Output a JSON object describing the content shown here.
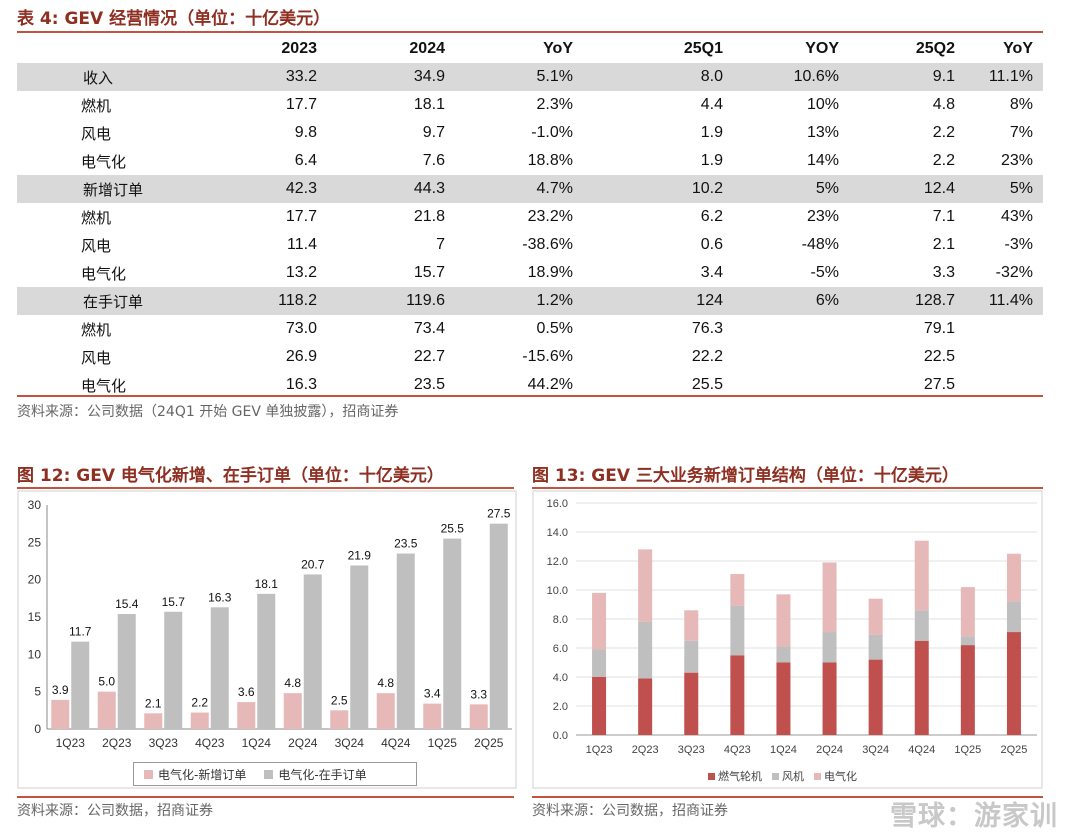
{
  "table": {
    "title": "表 4:  GEV 经营情况（单位：十亿美元）",
    "headers": [
      "",
      "2023",
      "2024",
      "YoY",
      "25Q1",
      "YOY",
      "25Q2",
      "YoY"
    ],
    "rows": [
      {
        "label": "收入",
        "highlight": true,
        "cells": [
          "33.2",
          "34.9",
          "5.1%",
          "8.0",
          "10.6%",
          "9.1",
          "11.1%"
        ]
      },
      {
        "label": "燃机",
        "highlight": false,
        "cells": [
          "17.7",
          "18.1",
          "2.3%",
          "4.4",
          "10%",
          "4.8",
          "8%"
        ]
      },
      {
        "label": "风电",
        "highlight": false,
        "cells": [
          "9.8",
          "9.7",
          "-1.0%",
          "1.9",
          "13%",
          "2.2",
          "7%"
        ]
      },
      {
        "label": "电气化",
        "highlight": false,
        "cells": [
          "6.4",
          "7.6",
          "18.8%",
          "1.9",
          "14%",
          "2.2",
          "23%"
        ]
      },
      {
        "label": "新增订单",
        "highlight": true,
        "cells": [
          "42.3",
          "44.3",
          "4.7%",
          "10.2",
          "5%",
          "12.4",
          "5%"
        ]
      },
      {
        "label": "燃机",
        "highlight": false,
        "cells": [
          "17.7",
          "21.8",
          "23.2%",
          "6.2",
          "23%",
          "7.1",
          "43%"
        ]
      },
      {
        "label": "风电",
        "highlight": false,
        "cells": [
          "11.4",
          "7",
          "-38.6%",
          "0.6",
          "-48%",
          "2.1",
          "-3%"
        ]
      },
      {
        "label": "电气化",
        "highlight": false,
        "cells": [
          "13.2",
          "15.7",
          "18.9%",
          "3.4",
          "-5%",
          "3.3",
          "-32%"
        ]
      },
      {
        "label": "在手订单",
        "highlight": true,
        "cells": [
          "118.2",
          "119.6",
          "1.2%",
          "124",
          "6%",
          "128.7",
          "11.4%"
        ]
      },
      {
        "label": "燃机",
        "highlight": false,
        "cells": [
          "73.0",
          "73.4",
          "0.5%",
          "76.3",
          "",
          "79.1",
          ""
        ]
      },
      {
        "label": "风电",
        "highlight": false,
        "cells": [
          "26.9",
          "22.7",
          "-15.6%",
          "22.2",
          "",
          "22.5",
          ""
        ]
      },
      {
        "label": "电气化",
        "highlight": false,
        "cells": [
          "16.3",
          "23.5",
          "44.2%",
          "25.5",
          "",
          "27.5",
          ""
        ]
      }
    ],
    "source": "资料来源：公司数据（24Q1 开始 GEV 单独披露），招商证券"
  },
  "fig12": {
    "title": "图 12:  GEV 电气化新增、在手订单（单位：十亿美元）",
    "source": "资料来源：公司数据，招商证券"
  },
  "fig13": {
    "title": "图 13:  GEV 三大业务新增订单结构（单位：十亿美元）",
    "source": "资料来源：公司数据，招商证券"
  },
  "watermark": "雪球：游家训",
  "colors": {
    "title": "#8e2f22",
    "rule": "#c2543f",
    "pink": "#e6b8b7",
    "gray": "#bfbfbf",
    "red": "#c0504d",
    "lightpink": "#e6b8b7"
  },
  "chart_data": [
    {
      "type": "bar",
      "title": "GEV 电气化新增、在手订单（单位：十亿美元）",
      "categories": [
        "1Q23",
        "2Q23",
        "3Q23",
        "4Q23",
        "1Q24",
        "2Q24",
        "3Q24",
        "4Q24",
        "1Q25",
        "2Q25"
      ],
      "series": [
        {
          "name": "电气化-新增订单",
          "color": "#e6b8b7",
          "values": [
            3.9,
            5.0,
            2.1,
            2.2,
            3.6,
            4.8,
            2.5,
            4.8,
            3.4,
            3.3
          ]
        },
        {
          "name": "电气化-在手订单",
          "color": "#bfbfbf",
          "values": [
            11.7,
            15.4,
            15.7,
            16.3,
            18.1,
            20.7,
            21.9,
            23.5,
            25.5,
            27.5
          ]
        }
      ],
      "yticks": [
        0,
        5,
        10,
        15,
        20,
        25,
        30
      ],
      "ylim": [
        0,
        30
      ],
      "legend_position": "bottom"
    },
    {
      "type": "stacked-bar",
      "title": "GEV 三大业务新增订单结构（单位：十亿美元）",
      "categories": [
        "1Q23",
        "2Q23",
        "3Q23",
        "4Q23",
        "1Q24",
        "2Q24",
        "3Q24",
        "4Q24",
        "1Q25",
        "2Q25"
      ],
      "series": [
        {
          "name": "燃气轮机",
          "color": "#c0504d",
          "values": [
            4.0,
            3.9,
            4.3,
            5.5,
            5.0,
            5.0,
            5.2,
            6.5,
            6.2,
            7.1
          ]
        },
        {
          "name": "风机",
          "color": "#bfbfbf",
          "values": [
            1.9,
            3.9,
            2.2,
            3.4,
            1.1,
            2.1,
            1.7,
            2.1,
            0.6,
            2.1
          ]
        },
        {
          "name": "电气化",
          "color": "#e6b8b7",
          "values": [
            3.9,
            5.0,
            2.1,
            2.2,
            3.6,
            4.8,
            2.5,
            4.8,
            3.4,
            3.3
          ]
        }
      ],
      "yticks": [
        "0.0",
        "2.0",
        "4.0",
        "6.0",
        "8.0",
        "10.0",
        "12.0",
        "14.0",
        "16.0"
      ],
      "ylim": [
        0,
        16
      ],
      "legend_position": "bottom"
    }
  ]
}
